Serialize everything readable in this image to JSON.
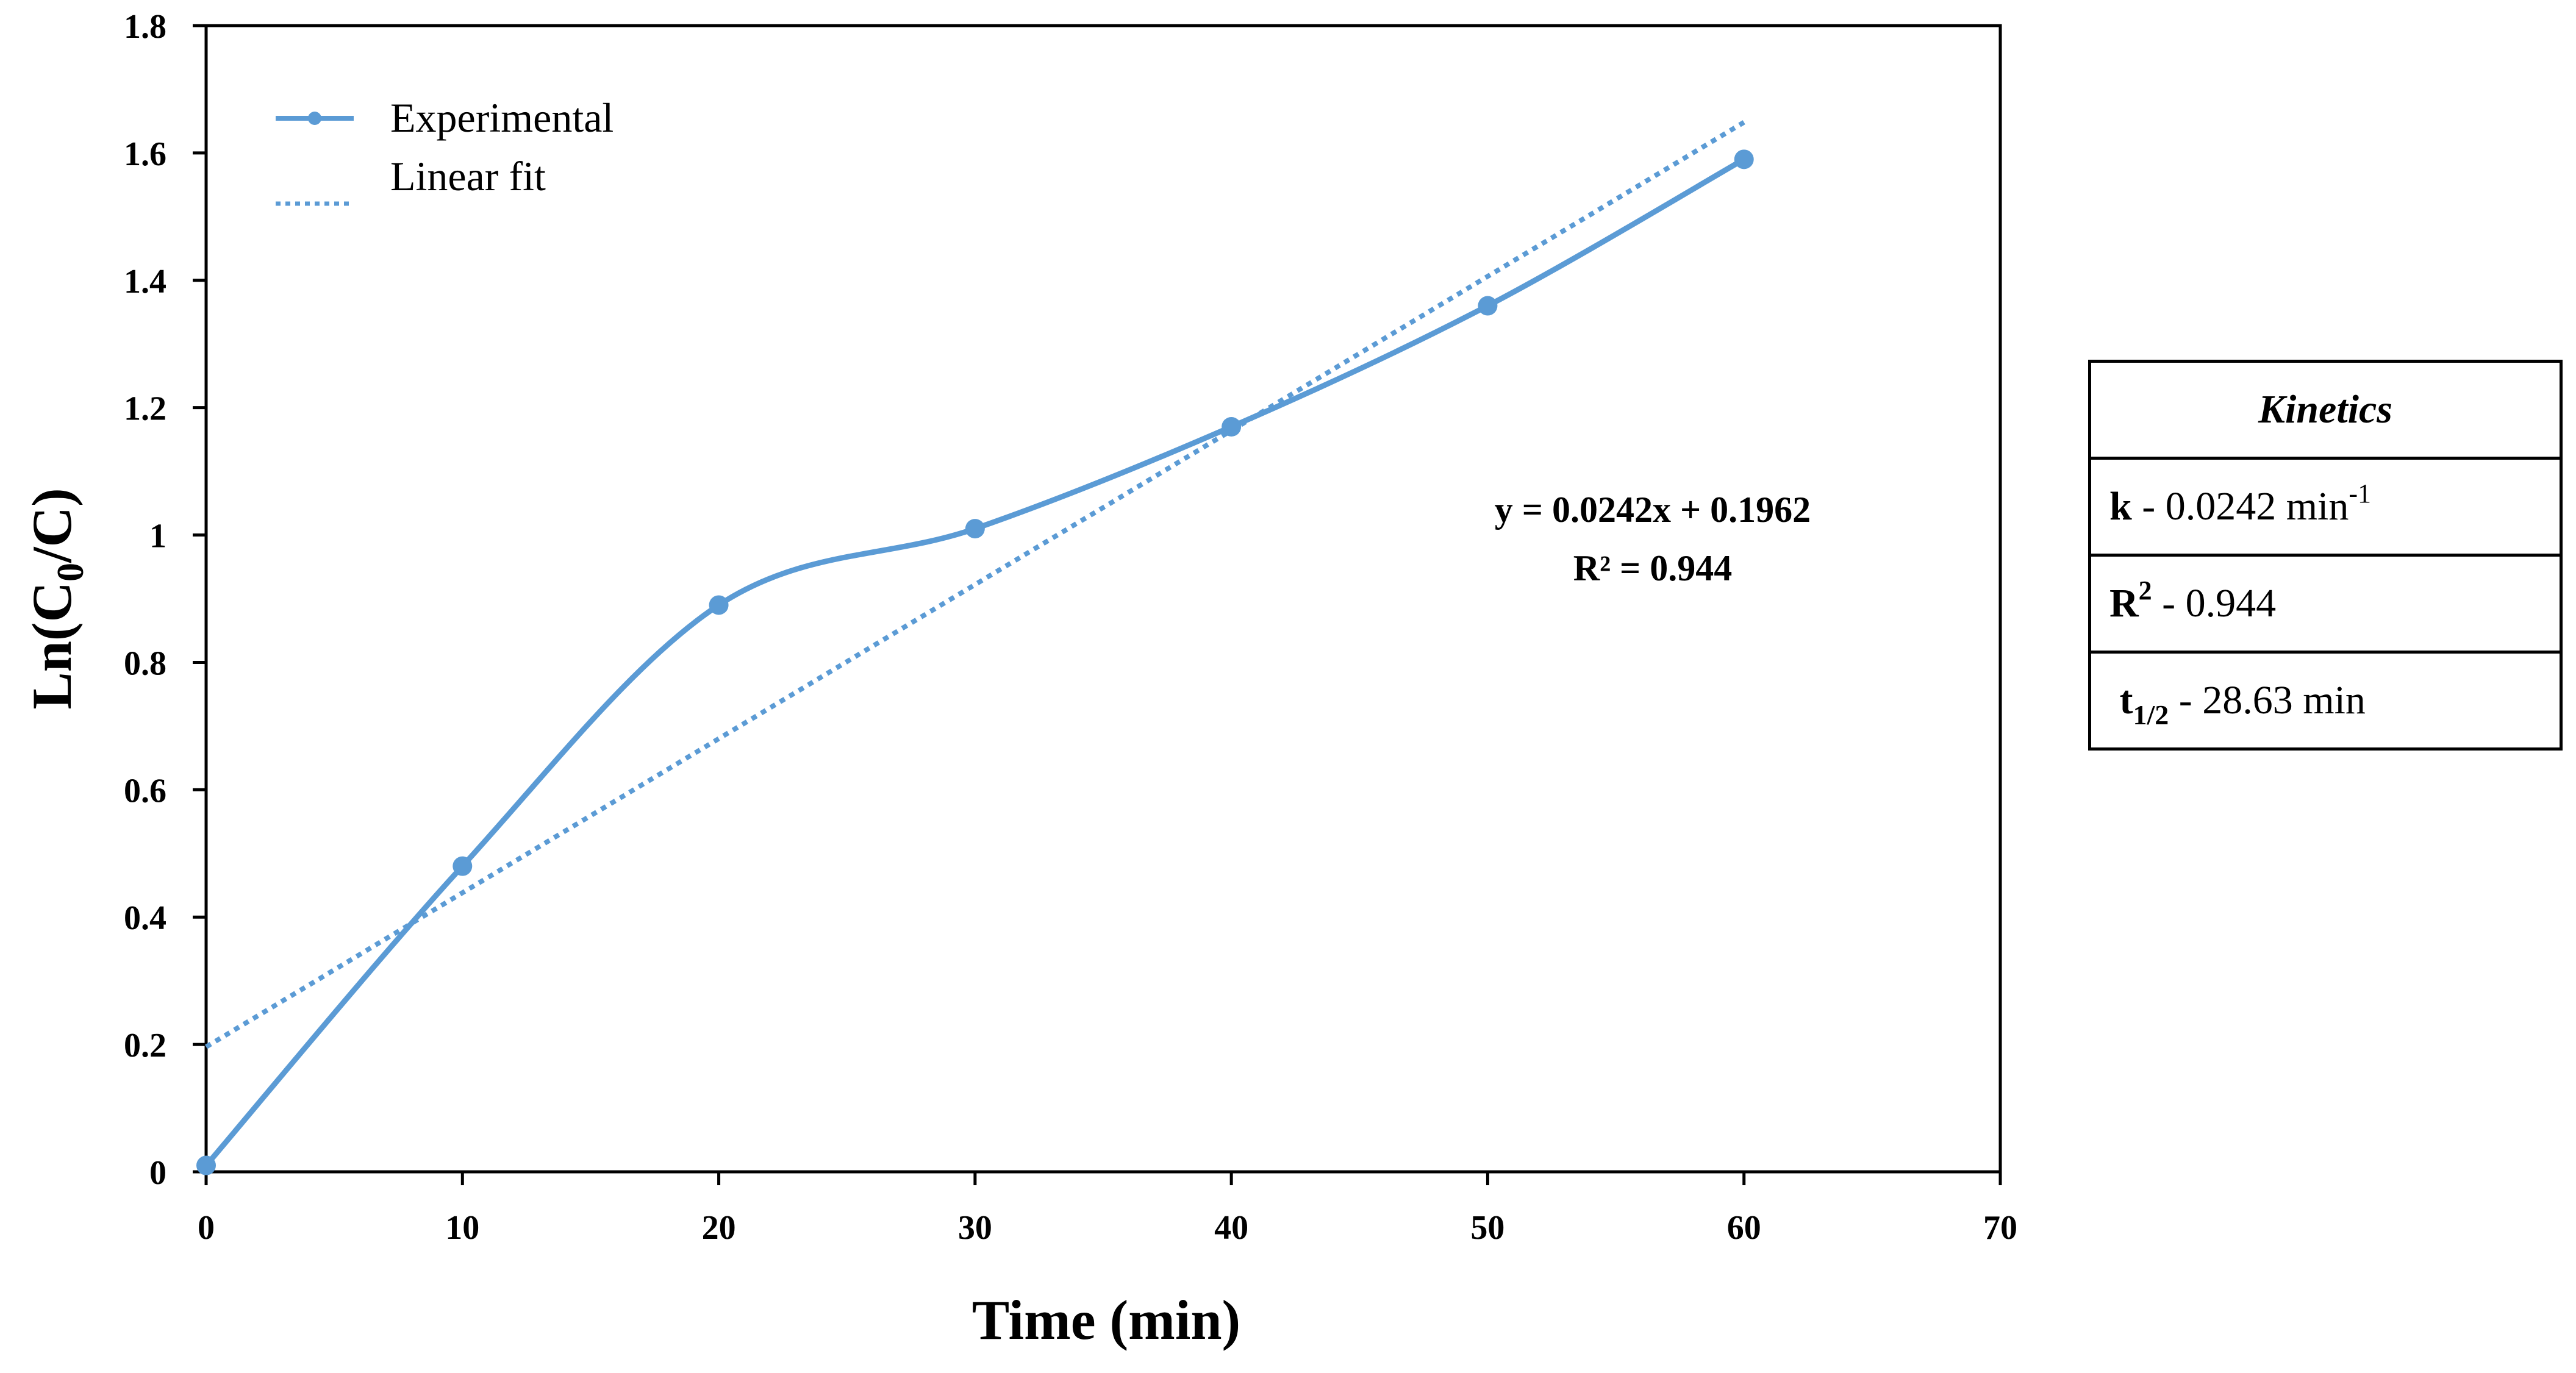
{
  "chart_data": {
    "type": "line",
    "xlabel": "Time (min)",
    "ylabel_main": "Ln(C",
    "ylabel_sub": "0",
    "ylabel_tail": "/C)",
    "xlim": [
      0,
      70
    ],
    "ylim": [
      0,
      1.8
    ],
    "x_ticks": [
      0,
      10,
      20,
      30,
      40,
      50,
      60,
      70
    ],
    "y_ticks": [
      0,
      0.2,
      0.4,
      0.6,
      0.8,
      1,
      1.2,
      1.4,
      1.6,
      1.8
    ],
    "x_tick_labels": [
      "0",
      "10",
      "20",
      "30",
      "40",
      "50",
      "60",
      "70"
    ],
    "y_tick_labels": [
      "0",
      "0.2",
      "0.4",
      "0.6",
      "0.8",
      "1",
      "1.2",
      "1.4",
      "1.6",
      "1.8"
    ],
    "grid": false,
    "legend_position": "top-left",
    "series": [
      {
        "name": "Experimental",
        "style": "solid-smoothed-with-markers",
        "color": "#5b9bd5",
        "x": [
          0,
          10,
          20,
          30,
          40,
          50,
          60
        ],
        "y": [
          0.01,
          0.48,
          0.89,
          1.01,
          1.17,
          1.36,
          1.59
        ]
      },
      {
        "name": "Linear fit",
        "style": "dotted",
        "color": "#5b9bd5",
        "slope": 0.0242,
        "intercept": 0.1962,
        "x_range": [
          0,
          60
        ]
      }
    ],
    "annotation": {
      "equation": "y = 0.0242x + 0.1962",
      "r_squared": "R² = 0.944"
    }
  },
  "kinetics": {
    "title": "Kinetics",
    "k_label": "k",
    "k_text": " - 0.0242 min",
    "k_sup": "-1",
    "r2_label": "R",
    "r2_sup": "2",
    "r2_text": " - 0.944",
    "t_label": "t",
    "t_sub": "1/2",
    "t_text": " - 28.63 min"
  }
}
